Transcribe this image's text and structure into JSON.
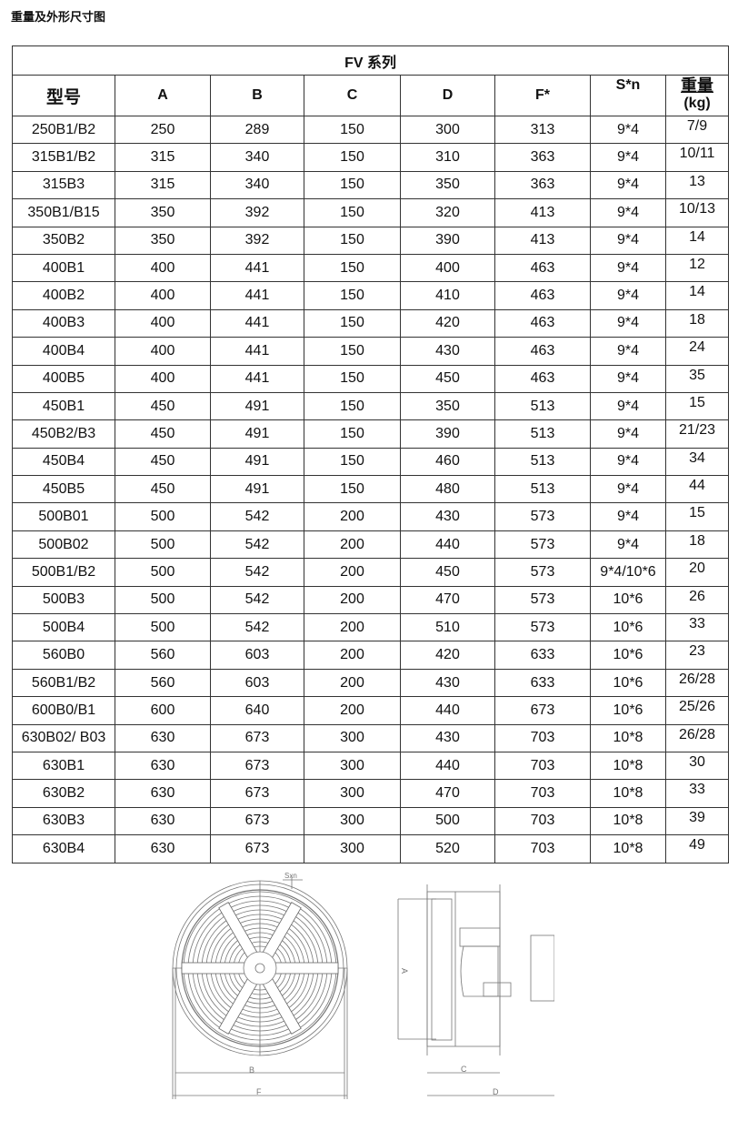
{
  "doc_title": "重量及外形尺寸图",
  "table": {
    "title": "FV 系列",
    "headers": [
      "型号",
      "A",
      "B",
      "C",
      "D",
      "F*",
      "S*n",
      "重量",
      "(kg)"
    ],
    "rows": [
      [
        "250B1/B2",
        "250",
        "289",
        "150",
        "300",
        "313",
        "9*4",
        "7/9"
      ],
      [
        "315B1/B2",
        "315",
        "340",
        "150",
        "310",
        "363",
        "9*4",
        "10/11"
      ],
      [
        "315B3",
        "315",
        "340",
        "150",
        "350",
        "363",
        "9*4",
        "13"
      ],
      [
        "350B1/B15",
        "350",
        "392",
        "150",
        "320",
        "413",
        "9*4",
        "10/13"
      ],
      [
        "350B2",
        "350",
        "392",
        "150",
        "390",
        "413",
        "9*4",
        "14"
      ],
      [
        "400B1",
        "400",
        "441",
        "150",
        "400",
        "463",
        "9*4",
        "12"
      ],
      [
        "400B2",
        "400",
        "441",
        "150",
        "410",
        "463",
        "9*4",
        "14"
      ],
      [
        "400B3",
        "400",
        "441",
        "150",
        "420",
        "463",
        "9*4",
        "18"
      ],
      [
        "400B4",
        "400",
        "441",
        "150",
        "430",
        "463",
        "9*4",
        "24"
      ],
      [
        "400B5",
        "400",
        "441",
        "150",
        "450",
        "463",
        "9*4",
        "35"
      ],
      [
        "450B1",
        "450",
        "491",
        "150",
        "350",
        "513",
        "9*4",
        "15"
      ],
      [
        "450B2/B3",
        "450",
        "491",
        "150",
        "390",
        "513",
        "9*4",
        "21/23"
      ],
      [
        "450B4",
        "450",
        "491",
        "150",
        "460",
        "513",
        "9*4",
        "34"
      ],
      [
        "450B5",
        "450",
        "491",
        "150",
        "480",
        "513",
        "9*4",
        "44"
      ],
      [
        "500B01",
        "500",
        "542",
        "200",
        "430",
        "573",
        "9*4",
        "15"
      ],
      [
        "500B02",
        "500",
        "542",
        "200",
        "440",
        "573",
        "9*4",
        "18"
      ],
      [
        "500B1/B2",
        "500",
        "542",
        "200",
        "450",
        "573",
        "9*4/10*6",
        "20"
      ],
      [
        "500B3",
        "500",
        "542",
        "200",
        "470",
        "573",
        "10*6",
        "26"
      ],
      [
        "500B4",
        "500",
        "542",
        "200",
        "510",
        "573",
        "10*6",
        "33"
      ],
      [
        "560B0",
        "560",
        "603",
        "200",
        "420",
        "633",
        "10*6",
        "23"
      ],
      [
        "560B1/B2",
        "560",
        "603",
        "200",
        "430",
        "633",
        "10*6",
        "26/28"
      ],
      [
        "600B0/B1",
        "600",
        "640",
        "200",
        "440",
        "673",
        "10*6",
        "25/26"
      ],
      [
        "630B02/ B03",
        "630",
        "673",
        "300",
        "430",
        "703",
        "10*8",
        "26/28"
      ],
      [
        "630B1",
        "630",
        "673",
        "300",
        "440",
        "703",
        "10*8",
        "30"
      ],
      [
        "630B2",
        "630",
        "673",
        "300",
        "470",
        "703",
        "10*8",
        "33"
      ],
      [
        "630B3",
        "630",
        "673",
        "300",
        "500",
        "703",
        "10*8",
        "39"
      ],
      [
        "630B4",
        "630",
        "673",
        "300",
        "520",
        "703",
        "10*8",
        "49"
      ]
    ]
  },
  "drawing": {
    "labels": {
      "sxn": "Sxn",
      "a": "A",
      "b": "B",
      "c": "C",
      "d": "D",
      "f": "F"
    }
  }
}
